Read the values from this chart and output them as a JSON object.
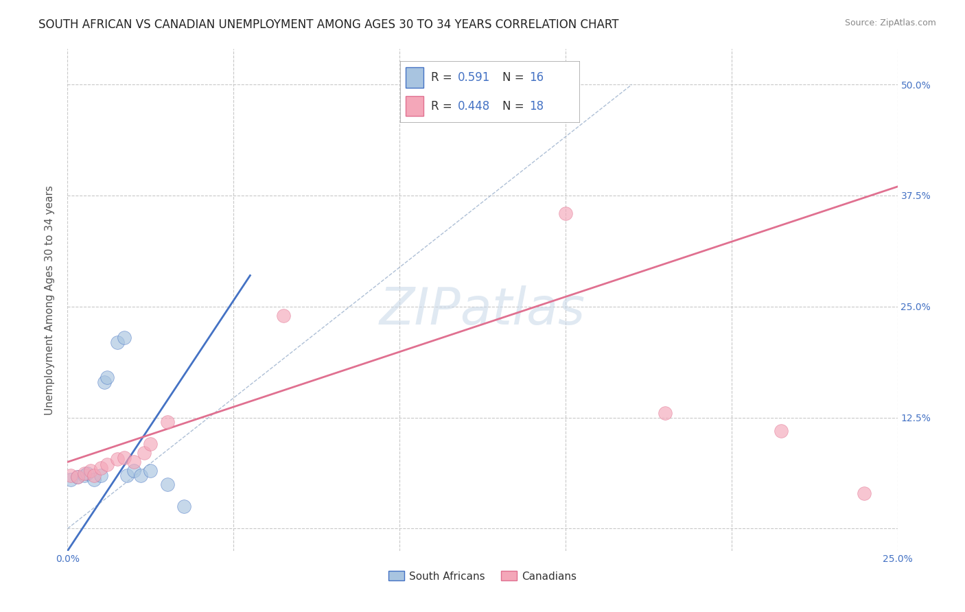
{
  "title": "SOUTH AFRICAN VS CANADIAN UNEMPLOYMENT AMONG AGES 30 TO 34 YEARS CORRELATION CHART",
  "source": "Source: ZipAtlas.com",
  "ylabel": "Unemployment Among Ages 30 to 34 years",
  "xlim": [
    0.0,
    0.25
  ],
  "ylim": [
    -0.025,
    0.54
  ],
  "xticks": [
    0.0,
    0.05,
    0.1,
    0.15,
    0.2,
    0.25
  ],
  "xtick_labels": [
    "0.0%",
    "",
    "",
    "",
    "",
    "25.0%"
  ],
  "yticks": [
    0.0,
    0.125,
    0.25,
    0.375,
    0.5
  ],
  "ytick_right_labels": [
    "",
    "12.5%",
    "25.0%",
    "37.5%",
    "50.0%"
  ],
  "sa_R": "0.591",
  "sa_N": "16",
  "ca_R": "0.448",
  "ca_N": "18",
  "sa_color": "#a8c4e0",
  "ca_color": "#f4a7b9",
  "sa_line_color": "#4472c4",
  "ca_line_color": "#e07090",
  "grid_color": "#c8c8c8",
  "background_color": "#ffffff",
  "sa_scatter_x": [
    0.001,
    0.003,
    0.005,
    0.006,
    0.008,
    0.01,
    0.011,
    0.012,
    0.015,
    0.017,
    0.018,
    0.02,
    0.022,
    0.025,
    0.03,
    0.035
  ],
  "sa_scatter_y": [
    0.055,
    0.058,
    0.06,
    0.062,
    0.055,
    0.06,
    0.165,
    0.17,
    0.21,
    0.215,
    0.06,
    0.065,
    0.06,
    0.065,
    0.05,
    0.025
  ],
  "ca_scatter_x": [
    0.001,
    0.003,
    0.005,
    0.007,
    0.008,
    0.01,
    0.012,
    0.015,
    0.017,
    0.02,
    0.023,
    0.025,
    0.03,
    0.065,
    0.15,
    0.18,
    0.215,
    0.24
  ],
  "ca_scatter_y": [
    0.06,
    0.058,
    0.062,
    0.065,
    0.06,
    0.068,
    0.072,
    0.078,
    0.08,
    0.075,
    0.085,
    0.095,
    0.12,
    0.24,
    0.355,
    0.13,
    0.11,
    0.04
  ],
  "sa_line_x": [
    0.0,
    0.055
  ],
  "sa_line_y": [
    -0.025,
    0.285
  ],
  "ca_line_x": [
    0.0,
    0.25
  ],
  "ca_line_y": [
    0.075,
    0.385
  ],
  "diag_line_x": [
    0.0,
    0.17
  ],
  "diag_line_y": [
    0.0,
    0.5
  ],
  "watermark": "ZIPatlas",
  "title_fontsize": 12,
  "label_fontsize": 11,
  "tick_fontsize": 10
}
